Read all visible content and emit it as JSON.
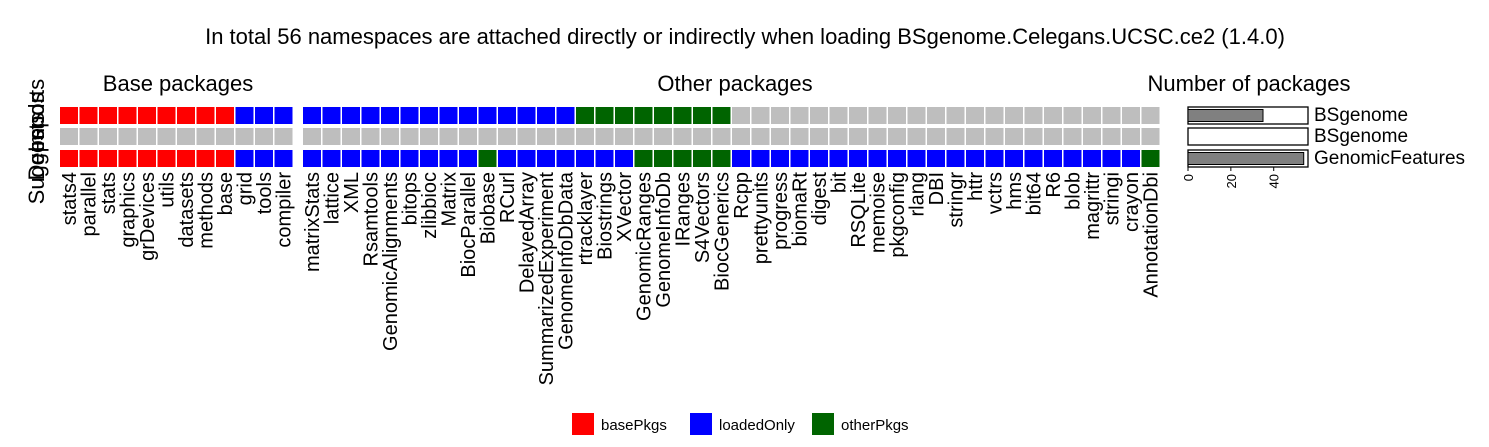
{
  "chart_data": {
    "type": "heatmap",
    "title": "In total 56 namespaces are attached directly or indirectly when loading BSgenome.Celegans.UCSC.ce2 (1.4.0)",
    "panel_titles": {
      "base": "Base packages",
      "other": "Other packages",
      "count": "Number of packages"
    },
    "row_labels": [
      "Imports",
      "Depends",
      "Suggests"
    ],
    "base_packages": [
      "stats4",
      "parallel",
      "stats",
      "graphics",
      "grDevices",
      "utils",
      "datasets",
      "methods",
      "base",
      "grid",
      "tools",
      "compiler"
    ],
    "other_packages": [
      "matrixStats",
      "lattice",
      "XML",
      "Rsamtools",
      "GenomicAlignments",
      "bitops",
      "zlibbioc",
      "Matrix",
      "BiocParallel",
      "Biobase",
      "RCurl",
      "DelayedArray",
      "SummarizedExperiment",
      "GenomeInfoDbData",
      "rtracklayer",
      "Biostrings",
      "XVector",
      "GenomicRanges",
      "GenomeInfoDb",
      "IRanges",
      "S4Vectors",
      "BiocGenerics",
      "Rcpp",
      "prettyunits",
      "progress",
      "biomaRt",
      "digest",
      "bit",
      "RSQLite",
      "memoise",
      "pkgconfig",
      "rlang",
      "DBI",
      "stringr",
      "httr",
      "vctrs",
      "hms",
      "bit64",
      "R6",
      "blob",
      "magrittr",
      "stringi",
      "crayon",
      "AnnotationDbi"
    ],
    "base_rows": [
      [
        "basePkgs",
        "basePkgs",
        "basePkgs",
        "basePkgs",
        "basePkgs",
        "basePkgs",
        "basePkgs",
        "basePkgs",
        "basePkgs",
        "loadedOnly",
        "loadedOnly",
        "loadedOnly"
      ],
      [
        "none",
        "none",
        "none",
        "none",
        "none",
        "none",
        "none",
        "none",
        "none",
        "none",
        "none",
        "none"
      ],
      [
        "basePkgs",
        "basePkgs",
        "basePkgs",
        "basePkgs",
        "basePkgs",
        "basePkgs",
        "basePkgs",
        "basePkgs",
        "basePkgs",
        "loadedOnly",
        "loadedOnly",
        "loadedOnly"
      ]
    ],
    "other_rows": [
      [
        "loadedOnly",
        "loadedOnly",
        "loadedOnly",
        "loadedOnly",
        "loadedOnly",
        "loadedOnly",
        "loadedOnly",
        "loadedOnly",
        "loadedOnly",
        "loadedOnly",
        "loadedOnly",
        "loadedOnly",
        "loadedOnly",
        "loadedOnly",
        "otherPkgs",
        "otherPkgs",
        "otherPkgs",
        "otherPkgs",
        "otherPkgs",
        "otherPkgs",
        "otherPkgs",
        "otherPkgs",
        "none",
        "none",
        "none",
        "none",
        "none",
        "none",
        "none",
        "none",
        "none",
        "none",
        "none",
        "none",
        "none",
        "none",
        "none",
        "none",
        "none",
        "none",
        "none",
        "none",
        "none",
        "none"
      ],
      [
        "none",
        "none",
        "none",
        "none",
        "none",
        "none",
        "none",
        "none",
        "none",
        "none",
        "none",
        "none",
        "none",
        "none",
        "none",
        "none",
        "none",
        "none",
        "none",
        "none",
        "none",
        "none",
        "none",
        "none",
        "none",
        "none",
        "none",
        "none",
        "none",
        "none",
        "none",
        "none",
        "none",
        "none",
        "none",
        "none",
        "none",
        "none",
        "none",
        "none",
        "none",
        "none",
        "none",
        "none"
      ],
      [
        "loadedOnly",
        "loadedOnly",
        "loadedOnly",
        "loadedOnly",
        "loadedOnly",
        "loadedOnly",
        "loadedOnly",
        "loadedOnly",
        "loadedOnly",
        "otherPkgs",
        "loadedOnly",
        "loadedOnly",
        "loadedOnly",
        "loadedOnly",
        "loadedOnly",
        "loadedOnly",
        "loadedOnly",
        "otherPkgs",
        "otherPkgs",
        "otherPkgs",
        "otherPkgs",
        "otherPkgs",
        "loadedOnly",
        "loadedOnly",
        "loadedOnly",
        "loadedOnly",
        "loadedOnly",
        "loadedOnly",
        "loadedOnly",
        "loadedOnly",
        "loadedOnly",
        "loadedOnly",
        "loadedOnly",
        "loadedOnly",
        "loadedOnly",
        "loadedOnly",
        "loadedOnly",
        "loadedOnly",
        "loadedOnly",
        "loadedOnly",
        "loadedOnly",
        "loadedOnly",
        "loadedOnly",
        "otherPkgs"
      ]
    ],
    "count_bars": [
      {
        "label": "BSgenome",
        "value": 35
      },
      {
        "label": "BSgenome",
        "value": 0
      },
      {
        "label": "GenomicFeatures",
        "value": 54
      }
    ],
    "count_axis": {
      "ticks": [
        0,
        20,
        40
      ],
      "max": 56
    },
    "legend": [
      {
        "key": "basePkgs",
        "label": "basePkgs"
      },
      {
        "key": "loadedOnly",
        "label": "loadedOnly"
      },
      {
        "key": "otherPkgs",
        "label": "otherPkgs"
      }
    ],
    "colors": {
      "basePkgs": "#ff0000",
      "loadedOnly": "#0000ff",
      "otherPkgs": "#006400",
      "none": "#bebebe",
      "bar": "#808080"
    }
  }
}
